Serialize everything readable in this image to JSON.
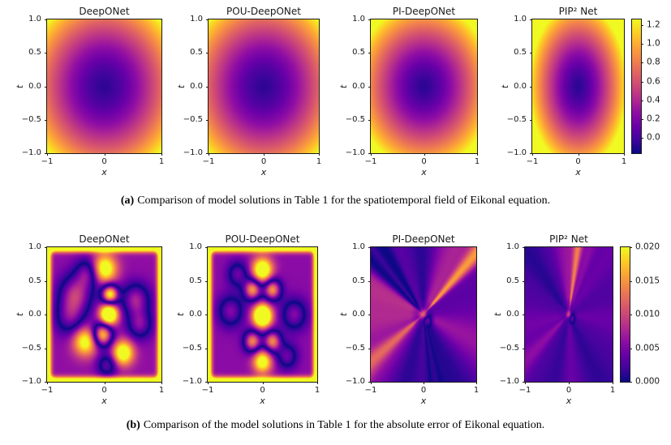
{
  "page": {
    "background": "#ffffff"
  },
  "plasma_colormap": [
    [
      0.0,
      "#0d0887"
    ],
    [
      0.1,
      "#41049d"
    ],
    [
      0.2,
      "#6a00a8"
    ],
    [
      0.3,
      "#8f0da4"
    ],
    [
      0.4,
      "#b12a90"
    ],
    [
      0.5,
      "#cc4778"
    ],
    [
      0.6,
      "#e16462"
    ],
    [
      0.7,
      "#f2844b"
    ],
    [
      0.8,
      "#fca636"
    ],
    [
      0.9,
      "#fcce25"
    ],
    [
      1.0,
      "#f0f921"
    ]
  ],
  "chart_data": [
    {
      "type": "heatmap",
      "subfigure": "a",
      "caption": {
        "label": "(a)",
        "text": "Comparison of model solutions in Table 1 for the spatiotemporal field of Eikonal equation."
      },
      "xlabel": "x",
      "ylabel": "t",
      "x_range": [
        -1,
        1
      ],
      "t_range": [
        -1,
        1
      ],
      "xticks": {
        "labels": [
          "−1",
          "0",
          "1"
        ],
        "values": [
          -1,
          0,
          1
        ]
      },
      "yticks": {
        "labels": [
          "1.0",
          "0.5",
          "0.0",
          "−0.5",
          "−1.0"
        ],
        "values": [
          1.0,
          0.5,
          0.0,
          -0.5,
          -1.0
        ]
      },
      "colorbar": {
        "vmin": -0.16,
        "vmax": 1.26,
        "tick_labels": [
          "1.2",
          "1.0",
          "0.8",
          "0.6",
          "0.4",
          "0.2",
          "0.0"
        ],
        "tick_values": [
          1.2,
          1.0,
          0.8,
          0.6,
          0.4,
          0.2,
          0.0
        ]
      },
      "colormap": "plasma",
      "value_model": "u(x,t) ~ distance from origin: minimum ~0 (dark) at (0,0), clipped yellow near corners",
      "panels": [
        {
          "title": "DeepONet",
          "field": {
            "type": "radial",
            "ax": 1.0,
            "at": 1.0,
            "amp": 0.8,
            "pow": 1.6,
            "off": -0.07
          }
        },
        {
          "title": "POU-DeepONet",
          "field": {
            "type": "radial",
            "ax": 0.97,
            "at": 1.0,
            "amp": 0.8,
            "pow": 1.6,
            "off": -0.07
          }
        },
        {
          "title": "PI-DeepONet",
          "field": {
            "type": "radial",
            "ax": 1.08,
            "at": 1.12,
            "amp": 0.82,
            "pow": 1.5,
            "off": -0.08
          }
        },
        {
          "title": "PIP² Net",
          "field": {
            "type": "radial",
            "ax": 1.28,
            "at": 1.1,
            "amp": 0.85,
            "pow": 1.5,
            "off": -0.08
          }
        }
      ]
    },
    {
      "type": "heatmap",
      "subfigure": "b",
      "caption": {
        "label": "(b)",
        "text": "Comparison of the model solutions in Table 1 for the absolute error of Eikonal equation."
      },
      "xlabel": "x",
      "ylabel": "t",
      "x_range": [
        -1,
        1
      ],
      "t_range": [
        -1,
        1
      ],
      "xticks": {
        "labels": [
          "−1",
          "0",
          "1"
        ],
        "values": [
          -1,
          0,
          1
        ]
      },
      "yticks": {
        "labels": [
          "1.0",
          "0.5",
          "0.0",
          "−0.5",
          "−1.0"
        ],
        "values": [
          1.0,
          0.5,
          0.0,
          -0.5,
          -1.0
        ]
      },
      "colorbar": {
        "vmin": 0.0,
        "vmax": 0.02,
        "tick_labels": [
          "0.020",
          "0.015",
          "0.010",
          "0.005",
          "0.000"
        ],
        "tick_values": [
          0.02,
          0.015,
          0.01,
          0.005,
          0.0
        ]
      },
      "colormap": "plasma",
      "value_model": "absolute error |u_pred - u_true|; DeepONet/POU-DeepONet show large blobby errors up to 0.02, PI-DeepONet/PIP² Net show small streaky errors near 0.005",
      "panels": [
        {
          "title": "DeepONet",
          "field": {
            "type": "bumps",
            "bg": 0.55,
            "scale": 0.011,
            "edge": [
              2.0,
              0.05
            ],
            "bumps": [
              [
                0.08,
                0.0,
                0.11,
                2.3
              ],
              [
                0.1,
                0.3,
                0.1,
                -2.4
              ],
              [
                -0.03,
                -0.3,
                0.12,
                -2.2
              ],
              [
                0.0,
                0.68,
                0.15,
                1.7
              ],
              [
                0.33,
                -0.57,
                0.13,
                1.7
              ],
              [
                -0.33,
                -0.4,
                0.15,
                1.5
              ],
              [
                -0.5,
                0.3,
                0.2,
                -1.3
              ],
              [
                0.55,
                0.22,
                0.17,
                -1.2
              ],
              [
                0.62,
                -0.15,
                0.15,
                -1.0
              ],
              [
                -0.6,
                -0.05,
                0.18,
                -0.9
              ],
              [
                -0.28,
                0.62,
                0.15,
                -1.0
              ],
              [
                0.05,
                -0.75,
                0.12,
                -0.9
              ]
            ]
          }
        },
        {
          "title": "POU-DeepONet",
          "field": {
            "type": "bumps",
            "bg": 0.52,
            "scale": 0.011,
            "edge": [
              2.0,
              0.05
            ],
            "bumps": [
              [
                0.0,
                -0.02,
                0.12,
                2.5
              ],
              [
                -0.18,
                0.37,
                0.11,
                -1.9
              ],
              [
                0.18,
                0.37,
                0.11,
                -1.9
              ],
              [
                -0.18,
                -0.4,
                0.11,
                -1.8
              ],
              [
                0.18,
                -0.4,
                0.11,
                -1.8
              ],
              [
                0.0,
                0.66,
                0.13,
                1.9
              ],
              [
                0.0,
                -0.7,
                0.12,
                1.6
              ],
              [
                -0.58,
                0.05,
                0.16,
                -1.0
              ],
              [
                0.58,
                0.0,
                0.16,
                -1.0
              ],
              [
                -0.45,
                0.6,
                0.13,
                -0.9
              ],
              [
                0.45,
                -0.62,
                0.13,
                -0.9
              ]
            ]
          }
        },
        {
          "title": "PI-DeepONet",
          "field": {
            "type": "streaks",
            "bg": 0.3,
            "scale": 0.011,
            "streaks": [
              [
                42,
                4,
                0.95
              ],
              [
                55,
                10,
                0.35
              ],
              [
                70,
                8,
                0.15
              ],
              [
                92,
                10,
                -0.2
              ],
              [
                126,
                4,
                -0.3
              ],
              [
                135,
                3.5,
                -0.5
              ],
              [
                143,
                3.5,
                -0.45
              ],
              [
                155,
                12,
                0.38
              ],
              [
                185,
                16,
                0.4
              ],
              [
                215,
                5,
                0.55
              ],
              [
                222,
                12,
                0.25
              ],
              [
                250,
                12,
                -0.2
              ],
              [
                282,
                5,
                -0.3
              ],
              [
                300,
                16,
                -0.22
              ],
              [
                338,
                14,
                0.3
              ]
            ],
            "bumps": [
              [
                0.0,
                0.0,
                0.05,
                0.9
              ],
              [
                0.08,
                -0.07,
                0.06,
                -0.7
              ]
            ]
          }
        },
        {
          "title": "PIP² Net",
          "field": {
            "type": "streaks",
            "bg": 0.24,
            "scale": 0.011,
            "streaks": [
              [
                78,
                4,
                0.8
              ],
              [
                86,
                9,
                0.3
              ],
              [
                64,
                5,
                0.25
              ],
              [
                100,
                8,
                0.2
              ],
              [
                45,
                9,
                0.12
              ],
              [
                135,
                9,
                -0.15
              ],
              [
                190,
                12,
                0.16
              ],
              [
                215,
                6,
                0.28
              ],
              [
                255,
                12,
                -0.12
              ],
              [
                272,
                10,
                0.15
              ],
              [
                305,
                12,
                -0.12
              ],
              [
                355,
                10,
                0.12
              ]
            ],
            "bumps": [
              [
                0.0,
                0.0,
                0.04,
                0.8
              ],
              [
                0.07,
                -0.05,
                0.05,
                -0.6
              ]
            ]
          }
        }
      ]
    }
  ]
}
